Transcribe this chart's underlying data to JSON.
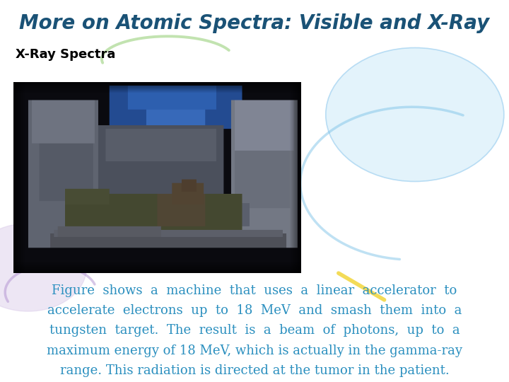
{
  "title": "More on Atomic Spectra: Visible and X-Ray",
  "title_color": "#1a5276",
  "title_fontsize": 20,
  "subtitle": "X-Ray Spectra",
  "subtitle_color": "#000000",
  "subtitle_fontsize": 13,
  "body_lines": [
    "Figure  shows  a  machine  that  uses  a  linear  accelerator  to",
    "accelerate  electrons  up  to  18  MeV  and  smash  them  into  a",
    "tungsten  target.  The  result  is  a  beam  of  photons,  up  to  a",
    "maximum energy of 18 MeV, which is actually in the gamma-ray",
    "range. This radiation is directed at the tumor in the patient."
  ],
  "body_color": "#2a8fbf",
  "body_fontsize": 13,
  "bg_color": "#ffffff",
  "figsize": [
    7.2,
    5.4
  ],
  "dpi": 100
}
